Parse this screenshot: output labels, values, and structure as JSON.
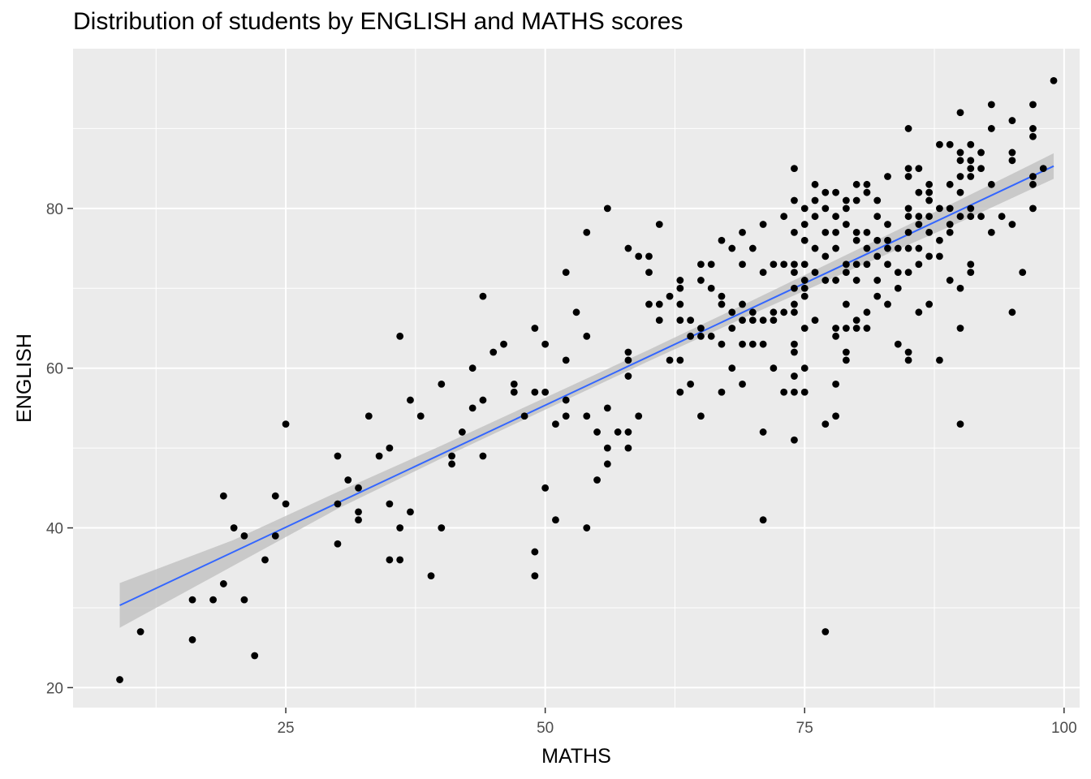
{
  "chart_data": {
    "type": "scatter",
    "title": "Distribution of students by ENGLISH and MATHS scores",
    "xlabel": "MATHS",
    "ylabel": "ENGLISH",
    "xlim": [
      4.5,
      101.5
    ],
    "ylim": [
      17.5,
      100
    ],
    "x_ticks": [
      25,
      50,
      75,
      100
    ],
    "y_ticks": [
      20,
      40,
      60,
      80
    ],
    "grid": true,
    "point_color": "#000000",
    "trend_color": "#3366ff",
    "band_color": "#bdbdbd",
    "panel_color": "#ebebeb",
    "trend": {
      "x": [
        9,
        99
      ],
      "y": [
        30.3,
        85.3
      ],
      "band": [
        {
          "x": 9,
          "lo": 27.5,
          "hi": 33.1
        },
        {
          "x": 20,
          "lo": 35.3,
          "hi": 38.5
        },
        {
          "x": 30,
          "lo": 42.4,
          "hi": 44.5
        },
        {
          "x": 40,
          "lo": 48.7,
          "hi": 50.3
        },
        {
          "x": 50,
          "lo": 54.8,
          "hi": 56.3
        },
        {
          "x": 60,
          "lo": 60.9,
          "hi": 62.3
        },
        {
          "x": 70,
          "lo": 66.8,
          "hi": 68.5
        },
        {
          "x": 80,
          "lo": 72.6,
          "hi": 74.8
        },
        {
          "x": 90,
          "lo": 78.3,
          "hi": 81.1
        },
        {
          "x": 99,
          "lo": 83.7,
          "hi": 86.9
        }
      ]
    },
    "points": [
      [
        9,
        21
      ],
      [
        11,
        27
      ],
      [
        16,
        31
      ],
      [
        16,
        26
      ],
      [
        18,
        31
      ],
      [
        19,
        44
      ],
      [
        19,
        33
      ],
      [
        20,
        40
      ],
      [
        21,
        39
      ],
      [
        21,
        31
      ],
      [
        22,
        24
      ],
      [
        23,
        36
      ],
      [
        24,
        39
      ],
      [
        24,
        44
      ],
      [
        25,
        43
      ],
      [
        25,
        53
      ],
      [
        30,
        49
      ],
      [
        30,
        43
      ],
      [
        30,
        38
      ],
      [
        31,
        46
      ],
      [
        32,
        45
      ],
      [
        32,
        42
      ],
      [
        32,
        41
      ],
      [
        33,
        54
      ],
      [
        34,
        49
      ],
      [
        35,
        50
      ],
      [
        35,
        43
      ],
      [
        35,
        36
      ],
      [
        36,
        64
      ],
      [
        36,
        40
      ],
      [
        36,
        36
      ],
      [
        37,
        56
      ],
      [
        37,
        42
      ],
      [
        38,
        54
      ],
      [
        39,
        34
      ],
      [
        40,
        58
      ],
      [
        40,
        40
      ],
      [
        41,
        49
      ],
      [
        41,
        48
      ],
      [
        42,
        52
      ],
      [
        43,
        60
      ],
      [
        43,
        55
      ],
      [
        44,
        69
      ],
      [
        44,
        56
      ],
      [
        44,
        49
      ],
      [
        45,
        62
      ],
      [
        46,
        63
      ],
      [
        47,
        58
      ],
      [
        47,
        57
      ],
      [
        48,
        54
      ],
      [
        49,
        65
      ],
      [
        49,
        57
      ],
      [
        49,
        37
      ],
      [
        49,
        34
      ],
      [
        50,
        63
      ],
      [
        50,
        57
      ],
      [
        50,
        45
      ],
      [
        51,
        53
      ],
      [
        51,
        41
      ],
      [
        52,
        72
      ],
      [
        52,
        61
      ],
      [
        52,
        56
      ],
      [
        52,
        54
      ],
      [
        53,
        67
      ],
      [
        54,
        77
      ],
      [
        54,
        64
      ],
      [
        54,
        54
      ],
      [
        54,
        40
      ],
      [
        55,
        52
      ],
      [
        55,
        46
      ],
      [
        56,
        80
      ],
      [
        56,
        55
      ],
      [
        56,
        50
      ],
      [
        56,
        48
      ],
      [
        57,
        52
      ],
      [
        58,
        75
      ],
      [
        58,
        62
      ],
      [
        58,
        61
      ],
      [
        58,
        59
      ],
      [
        58,
        52
      ],
      [
        58,
        50
      ],
      [
        59,
        74
      ],
      [
        59,
        54
      ],
      [
        60,
        74
      ],
      [
        60,
        72
      ],
      [
        60,
        68
      ],
      [
        61,
        78
      ],
      [
        61,
        68
      ],
      [
        61,
        66
      ],
      [
        62,
        69
      ],
      [
        62,
        61
      ],
      [
        63,
        71
      ],
      [
        63,
        70
      ],
      [
        63,
        68
      ],
      [
        63,
        66
      ],
      [
        63,
        61
      ],
      [
        63,
        57
      ],
      [
        64,
        66
      ],
      [
        64,
        64
      ],
      [
        64,
        58
      ],
      [
        65,
        73
      ],
      [
        65,
        71
      ],
      [
        65,
        65
      ],
      [
        65,
        64
      ],
      [
        65,
        54
      ],
      [
        66,
        73
      ],
      [
        66,
        70
      ],
      [
        66,
        64
      ],
      [
        67,
        76
      ],
      [
        67,
        69
      ],
      [
        67,
        68
      ],
      [
        67,
        63
      ],
      [
        67,
        57
      ],
      [
        68,
        75
      ],
      [
        68,
        67
      ],
      [
        68,
        65
      ],
      [
        68,
        60
      ],
      [
        69,
        77
      ],
      [
        69,
        73
      ],
      [
        69,
        68
      ],
      [
        69,
        66
      ],
      [
        69,
        63
      ],
      [
        69,
        58
      ],
      [
        70,
        75
      ],
      [
        70,
        67
      ],
      [
        70,
        66
      ],
      [
        70,
        63
      ],
      [
        71,
        78
      ],
      [
        71,
        72
      ],
      [
        71,
        66
      ],
      [
        71,
        63
      ],
      [
        71,
        52
      ],
      [
        71,
        41
      ],
      [
        72,
        73
      ],
      [
        72,
        67
      ],
      [
        72,
        66
      ],
      [
        72,
        60
      ],
      [
        73,
        79
      ],
      [
        73,
        73
      ],
      [
        73,
        67
      ],
      [
        73,
        57
      ],
      [
        74,
        85
      ],
      [
        74,
        81
      ],
      [
        74,
        77
      ],
      [
        74,
        73
      ],
      [
        74,
        72
      ],
      [
        74,
        70
      ],
      [
        74,
        68
      ],
      [
        74,
        67
      ],
      [
        74,
        63
      ],
      [
        74,
        62
      ],
      [
        74,
        59
      ],
      [
        74,
        57
      ],
      [
        74,
        51
      ],
      [
        75,
        80
      ],
      [
        75,
        78
      ],
      [
        75,
        76
      ],
      [
        75,
        73
      ],
      [
        75,
        71
      ],
      [
        75,
        70
      ],
      [
        75,
        69
      ],
      [
        75,
        65
      ],
      [
        75,
        60
      ],
      [
        75,
        57
      ],
      [
        76,
        83
      ],
      [
        76,
        81
      ],
      [
        76,
        79
      ],
      [
        76,
        75
      ],
      [
        76,
        72
      ],
      [
        76,
        66
      ],
      [
        77,
        82
      ],
      [
        77,
        80
      ],
      [
        77,
        77
      ],
      [
        77,
        74
      ],
      [
        77,
        71
      ],
      [
        77,
        27
      ],
      [
        77,
        53
      ],
      [
        78,
        82
      ],
      [
        78,
        79
      ],
      [
        78,
        77
      ],
      [
        78,
        75
      ],
      [
        78,
        71
      ],
      [
        78,
        65
      ],
      [
        78,
        64
      ],
      [
        78,
        58
      ],
      [
        78,
        54
      ],
      [
        79,
        81
      ],
      [
        79,
        80
      ],
      [
        79,
        78
      ],
      [
        79,
        73
      ],
      [
        79,
        72
      ],
      [
        79,
        68
      ],
      [
        79,
        65
      ],
      [
        79,
        62
      ],
      [
        79,
        61
      ],
      [
        80,
        83
      ],
      [
        80,
        81
      ],
      [
        80,
        77
      ],
      [
        80,
        76
      ],
      [
        80,
        73
      ],
      [
        80,
        71
      ],
      [
        80,
        66
      ],
      [
        80,
        65
      ],
      [
        81,
        83
      ],
      [
        81,
        82
      ],
      [
        81,
        77
      ],
      [
        81,
        75
      ],
      [
        81,
        73
      ],
      [
        81,
        67
      ],
      [
        81,
        65
      ],
      [
        82,
        81
      ],
      [
        82,
        79
      ],
      [
        82,
        76
      ],
      [
        82,
        74
      ],
      [
        82,
        71
      ],
      [
        82,
        69
      ],
      [
        83,
        84
      ],
      [
        83,
        78
      ],
      [
        83,
        76
      ],
      [
        83,
        75
      ],
      [
        83,
        73
      ],
      [
        83,
        68
      ],
      [
        84,
        75
      ],
      [
        84,
        72
      ],
      [
        84,
        70
      ],
      [
        84,
        63
      ],
      [
        85,
        90
      ],
      [
        85,
        85
      ],
      [
        85,
        84
      ],
      [
        85,
        80
      ],
      [
        85,
        79
      ],
      [
        85,
        77
      ],
      [
        85,
        75
      ],
      [
        85,
        72
      ],
      [
        85,
        62
      ],
      [
        85,
        61
      ],
      [
        86,
        85
      ],
      [
        86,
        82
      ],
      [
        86,
        79
      ],
      [
        86,
        78
      ],
      [
        86,
        75
      ],
      [
        86,
        73
      ],
      [
        86,
        67
      ],
      [
        87,
        83
      ],
      [
        87,
        82
      ],
      [
        87,
        81
      ],
      [
        87,
        79
      ],
      [
        87,
        77
      ],
      [
        87,
        74
      ],
      [
        87,
        68
      ],
      [
        88,
        88
      ],
      [
        88,
        80
      ],
      [
        88,
        76
      ],
      [
        88,
        74
      ],
      [
        88,
        61
      ],
      [
        89,
        88
      ],
      [
        89,
        83
      ],
      [
        89,
        80
      ],
      [
        89,
        78
      ],
      [
        89,
        77
      ],
      [
        89,
        71
      ],
      [
        90,
        92
      ],
      [
        90,
        87
      ],
      [
        90,
        86
      ],
      [
        90,
        84
      ],
      [
        90,
        82
      ],
      [
        90,
        79
      ],
      [
        90,
        70
      ],
      [
        90,
        65
      ],
      [
        90,
        53
      ],
      [
        91,
        88
      ],
      [
        91,
        86
      ],
      [
        91,
        85
      ],
      [
        91,
        84
      ],
      [
        91,
        80
      ],
      [
        91,
        79
      ],
      [
        91,
        73
      ],
      [
        91,
        72
      ],
      [
        92,
        87
      ],
      [
        92,
        85
      ],
      [
        92,
        79
      ],
      [
        93,
        93
      ],
      [
        93,
        90
      ],
      [
        93,
        83
      ],
      [
        93,
        77
      ],
      [
        94,
        79
      ],
      [
        95,
        91
      ],
      [
        95,
        87
      ],
      [
        95,
        86
      ],
      [
        95,
        78
      ],
      [
        95,
        67
      ],
      [
        96,
        72
      ],
      [
        97,
        93
      ],
      [
        97,
        90
      ],
      [
        97,
        89
      ],
      [
        97,
        84
      ],
      [
        97,
        83
      ],
      [
        97,
        80
      ],
      [
        98,
        85
      ],
      [
        99,
        96
      ]
    ]
  }
}
